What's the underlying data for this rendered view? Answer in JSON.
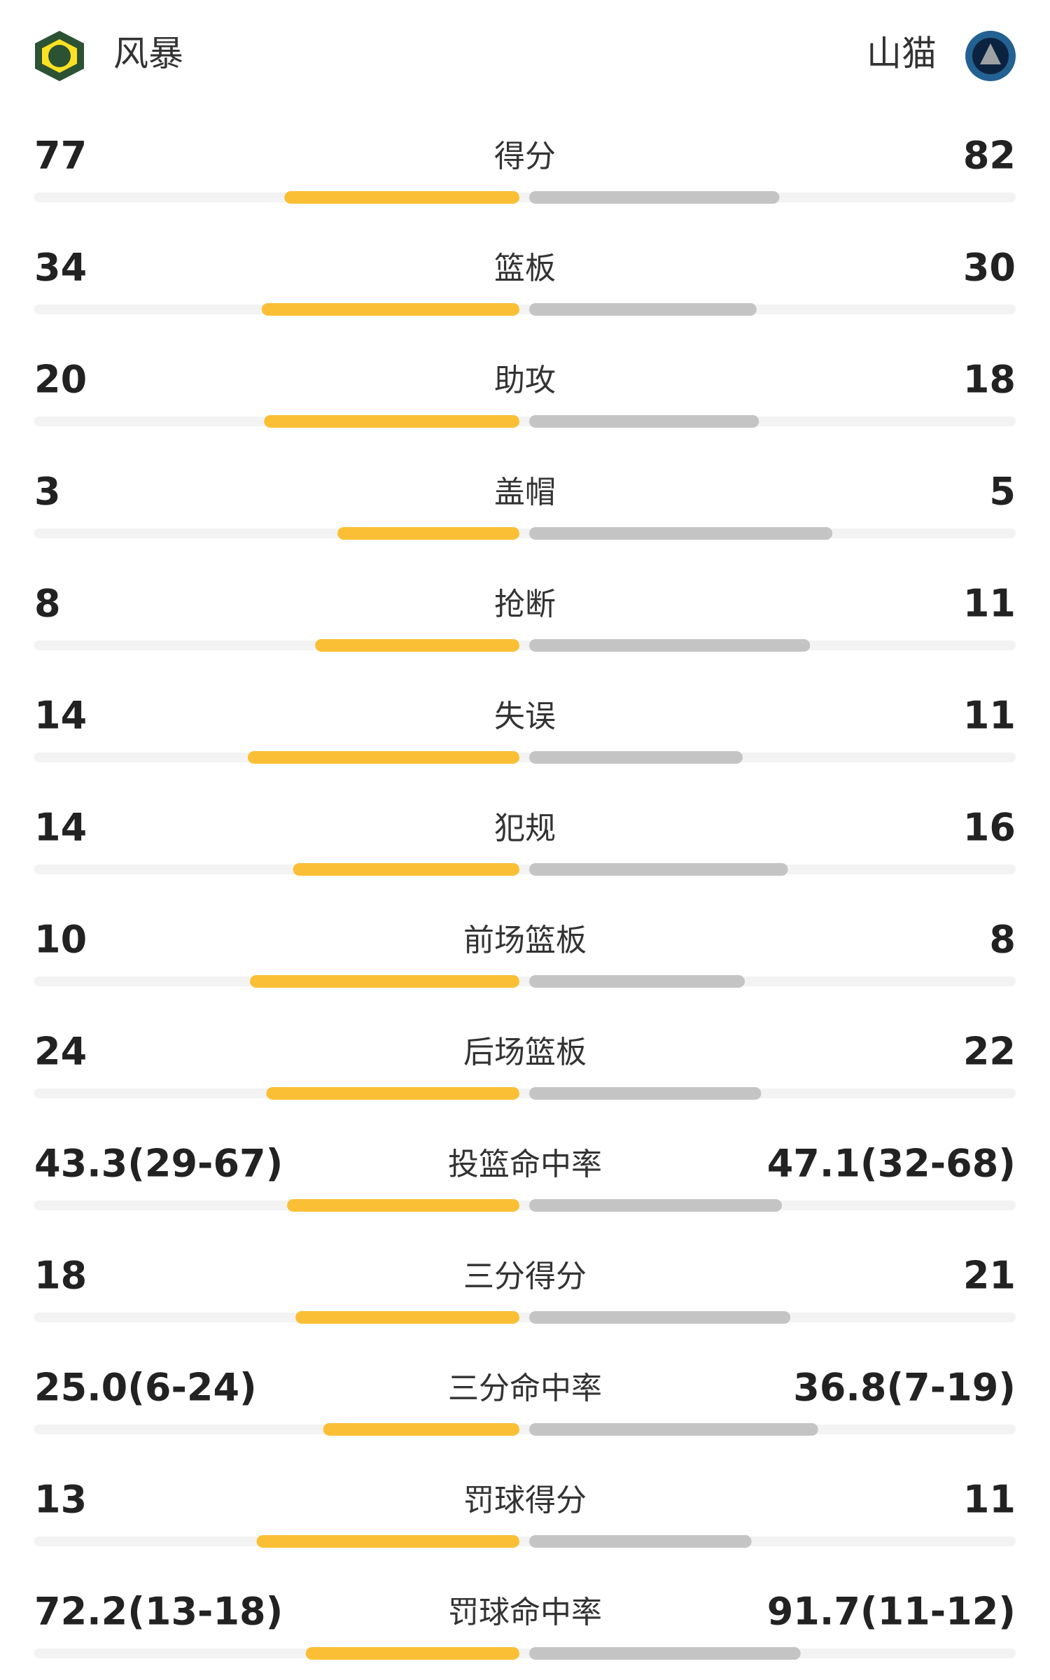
{
  "chart_data": {
    "type": "bar",
    "categories": [
      "得分",
      "篮板",
      "助攻",
      "盖帽",
      "抢断",
      "失误",
      "犯规",
      "前场篮板",
      "后场篮板",
      "投篮命中率",
      "三分得分",
      "三分命中率",
      "罚球得分",
      "罚球命中率"
    ],
    "series": [
      {
        "name": "风暴",
        "color": "#fbbf35",
        "values": [
          77,
          34,
          20,
          3,
          8,
          14,
          14,
          10,
          24,
          43.3,
          18,
          25.0,
          13,
          72.2
        ],
        "value_labels": [
          null,
          null,
          null,
          null,
          null,
          null,
          null,
          null,
          null,
          "43.3(29-67)",
          null,
          "25.0(6-24)",
          null,
          "72.2(13-18)"
        ]
      },
      {
        "name": "山猫",
        "color": "#c4c4c4",
        "values": [
          82,
          30,
          18,
          5,
          11,
          11,
          16,
          8,
          22,
          47.1,
          21,
          36.8,
          11,
          91.7
        ],
        "value_labels": [
          null,
          null,
          null,
          null,
          null,
          null,
          null,
          null,
          null,
          "47.1(32-68)",
          null,
          "36.8(7-19)",
          null,
          "91.7(11-12)"
        ]
      }
    ]
  }
}
